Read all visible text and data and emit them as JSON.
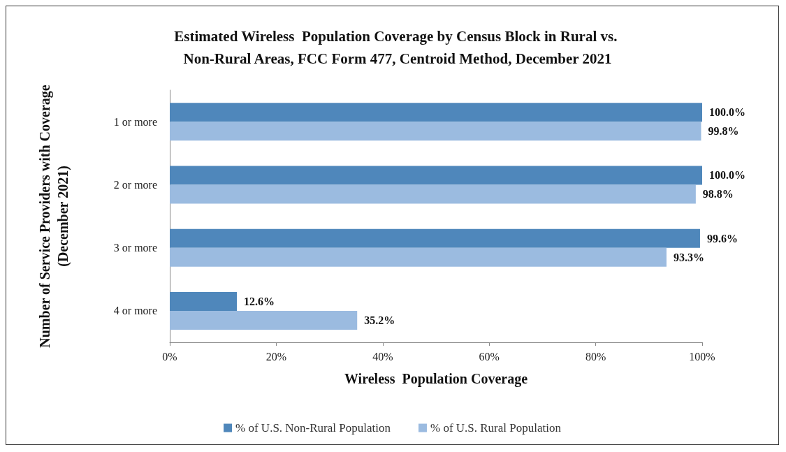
{
  "chart_data": {
    "type": "bar",
    "orientation": "horizontal",
    "title": "Estimated Wireless  Population Coverage by Census Block in Rural vs. Non-Rural Areas, FCC Form 477, Centroid Method, December 2021",
    "xlabel": "Wireless  Population Coverage",
    "ylabel": "Number of Service Providers with Coverage\n(December 2021)",
    "categories": [
      "1 or more",
      "2 or more",
      "3 or more",
      "4 or more"
    ],
    "series": [
      {
        "name": "% of U.S. Non-Rural Population",
        "color": "#4f87bb",
        "values": [
          100.0,
          100.0,
          99.6,
          12.6
        ],
        "value_labels": [
          "100.0%",
          "100.0%",
          "99.6%",
          "12.6%"
        ]
      },
      {
        "name": "% of U.S. Rural Population",
        "color": "#9bbbe0",
        "values": [
          99.8,
          98.8,
          93.3,
          35.2
        ],
        "value_labels": [
          "99.8%",
          "98.8%",
          "93.3%",
          "35.2%"
        ]
      }
    ],
    "xlim": [
      0,
      100
    ],
    "xticks": [
      {
        "value": 0,
        "label": "0%"
      },
      {
        "value": 20,
        "label": "20%"
      },
      {
        "value": 40,
        "label": "40%"
      },
      {
        "value": 60,
        "label": "60%"
      },
      {
        "value": 80,
        "label": "80%"
      },
      {
        "value": 100,
        "label": "100%"
      }
    ],
    "grid": false,
    "legend": "bottom"
  }
}
